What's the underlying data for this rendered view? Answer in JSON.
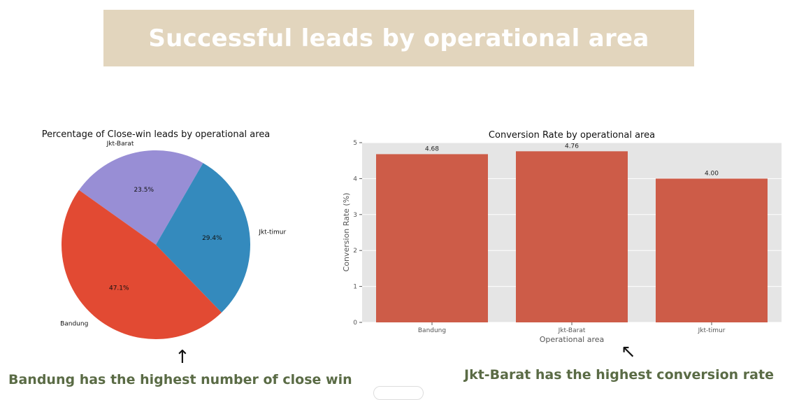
{
  "header": {
    "title": "Successful leads by operational area"
  },
  "captions": {
    "pie_note": "Bandung has the highest number of close win",
    "bar_note": "Jkt-Barat has the highest conversion rate"
  },
  "arrows": {
    "pie_arrow": "↑",
    "bar_arrow": "↖"
  },
  "chart_data": [
    {
      "type": "pie",
      "title": "Percentage of Close-win leads by operational area",
      "slices": [
        {
          "label": "Jkt-Barat",
          "value": 23.5,
          "pct_label": "23.5%",
          "color": "#988ed5"
        },
        {
          "label": "Bandung",
          "value": 47.1,
          "pct_label": "47.1%",
          "color": "#e24a33"
        },
        {
          "label": "Jkt-timur",
          "value": 29.4,
          "pct_label": "29.4%",
          "color": "#348abd"
        }
      ],
      "start_angle_deg": 60,
      "direction": "counterclockwise"
    },
    {
      "type": "bar",
      "title": "Conversion Rate by operational area",
      "categories": [
        "Bandung",
        "Jkt-Barat",
        "Jkt-timur"
      ],
      "values": [
        4.68,
        4.76,
        4.0
      ],
      "value_labels": [
        "4.68",
        "4.76",
        "4.00"
      ],
      "xlabel": "Operational area",
      "ylabel": "Conversion Rate (%)",
      "ylim": [
        0,
        5
      ],
      "yticks": [
        0,
        1,
        2,
        3,
        4,
        5
      ],
      "bar_color": "#cd5c48",
      "background": "#e5e5e5",
      "grid": true
    }
  ]
}
